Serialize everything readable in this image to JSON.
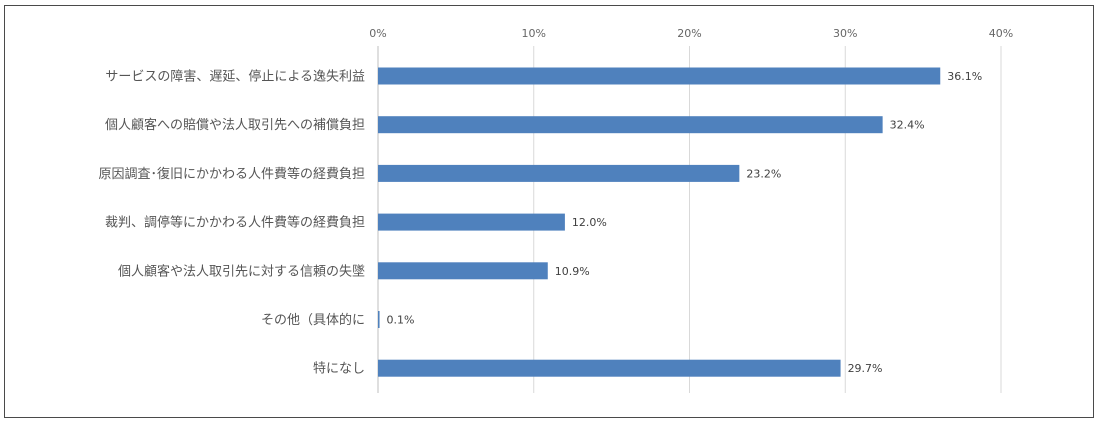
{
  "chart_data": {
    "type": "bar",
    "orientation": "horizontal",
    "categories": [
      "サービスの障害、遅延、停止による逸失利益",
      "個人顧客への賠償や法人取引先への補償負担",
      "原因調査･復旧にかかわる人件費等の経費負担",
      "裁判、調停等にかかわる人件費等の経費負担",
      "個人顧客や法人取引先に対する信頼の失墜",
      "その他（具体的に",
      "特になし"
    ],
    "values": [
      36.1,
      32.4,
      23.2,
      12.0,
      10.9,
      0.1,
      29.7
    ],
    "value_labels": [
      "36.1%",
      "32.4%",
      "23.2%",
      "12.0%",
      "10.9%",
      "0.1%",
      "29.7%"
    ],
    "xlim": [
      0,
      40
    ],
    "ticks": [
      0,
      10,
      20,
      30,
      40
    ],
    "tick_labels": [
      "0%",
      "10%",
      "20%",
      "30%",
      "40%"
    ],
    "axis_position": "top",
    "grid": true,
    "bar_color": "#4f81bd",
    "grid_color": "#d9d9d9"
  }
}
